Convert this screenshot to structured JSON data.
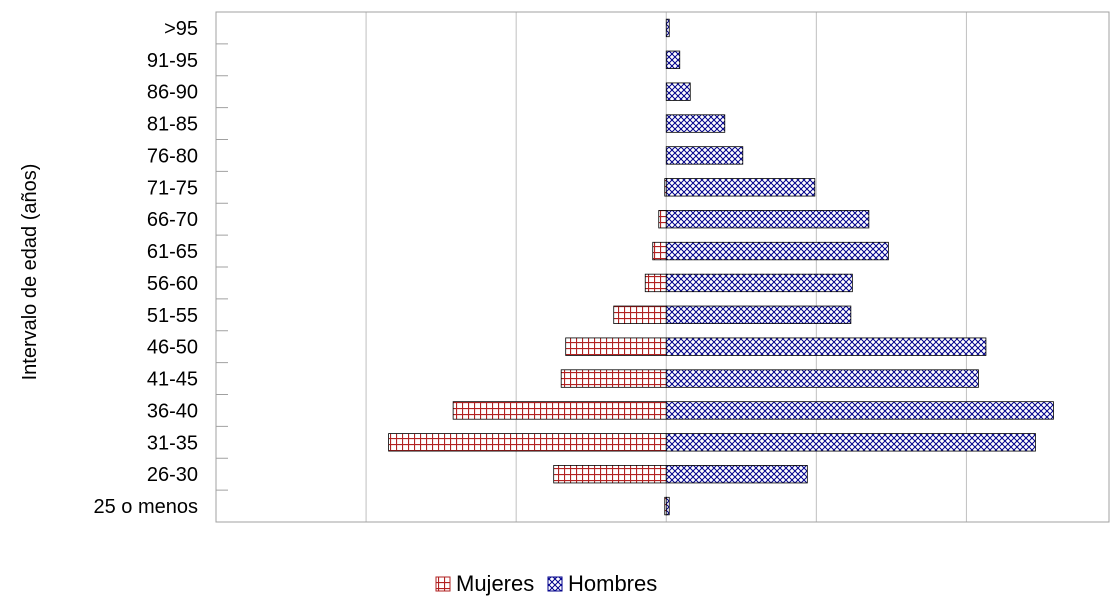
{
  "chart_data": {
    "type": "bar",
    "orientation": "horizontal",
    "stacked": "diverging",
    "categories": [
      "25 o menos",
      "26-30",
      "31-35",
      "36-40",
      "41-45",
      "46-50",
      "51-55",
      "56-60",
      "61-65",
      "66-70",
      "71-75",
      "76-80",
      "81-85",
      "86-90",
      "91-95",
      ">95"
    ],
    "series": [
      {
        "name": "Mujeres",
        "pattern": "grid",
        "color": "#b22222",
        "values": [
          -0.1,
          -7.5,
          -18.5,
          -14.2,
          -7.0,
          -6.7,
          -3.5,
          -1.4,
          -0.9,
          -0.5,
          -0.1,
          0,
          0,
          0,
          0,
          0
        ]
      },
      {
        "name": "Hombres",
        "pattern": "crosshatch",
        "color": "#00008b",
        "values": [
          0.2,
          9.4,
          24.6,
          25.8,
          20.8,
          21.3,
          12.3,
          12.4,
          14.8,
          13.5,
          9.9,
          5.1,
          3.9,
          1.6,
          0.9,
          0.2
        ]
      }
    ],
    "xlim": [
      -30,
      29.5
    ],
    "x_gridlines": [
      -20,
      -10,
      0,
      10,
      20
    ],
    "ylabel": "Intervalo de edad (años)",
    "xlabel": "",
    "title": "",
    "grid": true,
    "legend_position": "bottom"
  },
  "legend": {
    "mujeres_label": "Mujeres",
    "hombres_label": "Hombres"
  }
}
